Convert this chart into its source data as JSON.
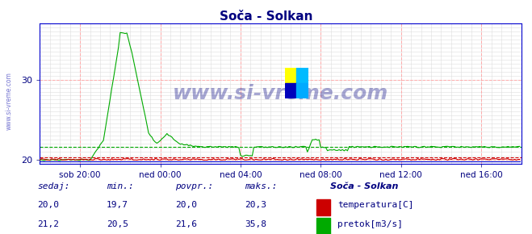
{
  "title": "Soča - Solkan",
  "title_color": "#000080",
  "bg_color": "#ffffff",
  "plot_bg_color": "#ffffff",
  "ylim": [
    19.5,
    37.0
  ],
  "yticks": [
    20,
    30
  ],
  "xlabel_color": "#000080",
  "ylabel_color": "#000080",
  "watermark_text": "www.si-vreme.com",
  "watermark_color": "#000080",
  "watermark_alpha": 0.35,
  "border_color": "#0000cc",
  "temp_color": "#cc0000",
  "flow_color": "#00aa00",
  "height_color": "#0000cc",
  "dashed_temp_value": 20.3,
  "dashed_flow_value": 21.6,
  "xlim_start": 0,
  "xlim_end": 288,
  "xtick_positions": [
    24,
    72,
    120,
    168,
    216,
    264
  ],
  "xtick_labels": [
    "sob 20:00",
    "ned 00:00",
    "ned 04:00",
    "ned 08:00",
    "ned 12:00",
    "ned 16:00"
  ],
  "footer_labels": [
    "sedaj:",
    "min.:",
    "povpr.:",
    "maks.:"
  ],
  "footer_color": "#000080",
  "station_name": "Soča - Solkan",
  "legend_entries": [
    "temperatura[C]",
    "pretok[m3/s]"
  ],
  "legend_colors": [
    "#cc0000",
    "#00aa00"
  ],
  "temp_sedaj": "20,0",
  "temp_min": "19,7",
  "temp_povpr": "20,0",
  "temp_maks": "20,3",
  "flow_sedaj": "21,2",
  "flow_min": "20,5",
  "flow_povpr": "21,6",
  "flow_maks": "35,8"
}
